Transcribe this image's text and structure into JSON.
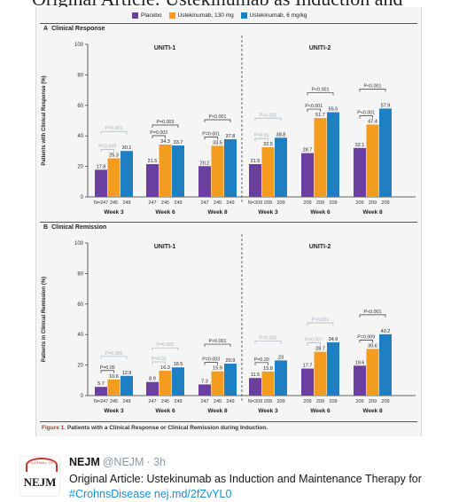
{
  "top_strip_text": "Original Article: Ustekinumab as Induction and",
  "legend": [
    {
      "label": "Placebo",
      "color": "#6b3fa0"
    },
    {
      "label": "Ustekinumab, 130 mg",
      "color": "#f39c1f"
    },
    {
      "label": "Ustekinumab, 6 mg/kg",
      "color": "#1e7fc3"
    }
  ],
  "panel_a": {
    "letter": "A",
    "title": "Clinical Response"
  },
  "panel_b": {
    "letter": "B",
    "title": "Clinical Remission"
  },
  "caption": {
    "label": "Figure 1.",
    "text": "Patients with a Clinical Response or Clinical Remission during Induction."
  },
  "chart_data": [
    {
      "type": "bar",
      "panel": "A",
      "ylabel": "Patients with Clinical Response (%)",
      "ylim": [
        0,
        100
      ],
      "yticks": [
        0,
        20,
        40,
        60,
        80,
        100
      ],
      "trial_labels": [
        "UNITI-1",
        "UNITI-2"
      ],
      "series_names": [
        "Placebo",
        "Ustekinumab, 130 mg",
        "Ustekinumab, 6 mg/kg"
      ],
      "groups": [
        {
          "trial": "UNITI-1",
          "week": "Week 3",
          "n": [
            "N=247",
            "245",
            "249"
          ],
          "values": [
            17.8,
            25.3,
            30.1
          ],
          "p": [
            {
              "text": "P=0.001",
              "faded": true,
              "pair": [
                0,
                2
              ]
            },
            {
              "text": "P=0.049",
              "faded": true,
              "pair": [
                0,
                1
              ]
            }
          ]
        },
        {
          "trial": "UNITI-1",
          "week": "Week 6",
          "n": [
            "247",
            "245",
            "249"
          ],
          "values": [
            21.5,
            34.3,
            33.7
          ],
          "p": [
            {
              "text": "P=0.003",
              "faded": false,
              "pair": [
                0,
                2
              ]
            },
            {
              "text": "P=0.002",
              "faded": false,
              "pair": [
                0,
                1
              ]
            }
          ]
        },
        {
          "trial": "UNITI-1",
          "week": "Week 8",
          "n": [
            "247",
            "245",
            "249"
          ],
          "values": [
            20.2,
            33.5,
            37.8
          ],
          "p": [
            {
              "text": "P<0.001",
              "faded": false,
              "pair": [
                0,
                2
              ]
            },
            {
              "text": "P=0.001",
              "faded": false,
              "pair": [
                0,
                1
              ]
            }
          ]
        },
        {
          "trial": "UNITI-2",
          "week": "Week 3",
          "n": [
            "N=209",
            "209",
            "209"
          ],
          "values": [
            21.5,
            32.5,
            38.8
          ],
          "p": [
            {
              "text": "P<0.001",
              "faded": true,
              "pair": [
                0,
                2
              ]
            },
            {
              "text": "P=0.01",
              "faded": true,
              "pair": [
                0,
                1
              ]
            }
          ]
        },
        {
          "trial": "UNITI-2",
          "week": "Week 6",
          "n": [
            "209",
            "209",
            "209"
          ],
          "values": [
            28.7,
            51.7,
            55.5
          ],
          "p": [
            {
              "text": "P<0.001",
              "faded": false,
              "pair": [
                0,
                2
              ]
            },
            {
              "text": "P<0.001",
              "faded": false,
              "pair": [
                0,
                1
              ]
            }
          ]
        },
        {
          "trial": "UNITI-2",
          "week": "Week 8",
          "n": [
            "209",
            "209",
            "209"
          ],
          "values": [
            32.1,
            47.4,
            57.9
          ],
          "p": [
            {
              "text": "P<0.001",
              "faded": false,
              "pair": [
                0,
                2
              ]
            },
            {
              "text": "P<0.001",
              "faded": false,
              "pair": [
                0,
                1
              ]
            }
          ]
        }
      ]
    },
    {
      "type": "bar",
      "panel": "B",
      "ylabel": "Patients in Clinical Remission (%)",
      "ylim": [
        0,
        100
      ],
      "yticks": [
        0,
        20,
        40,
        60,
        80,
        100
      ],
      "trial_labels": [
        "UNITI-1",
        "UNITI-2"
      ],
      "series_names": [
        "Placebo",
        "Ustekinumab, 130 mg",
        "Ustekinumab, 6 mg/kg"
      ],
      "groups": [
        {
          "trial": "UNITI-1",
          "week": "Week 3",
          "n": [
            "N=247",
            "245",
            "249"
          ],
          "values": [
            5.7,
            10.6,
            12.9
          ],
          "p": [
            {
              "text": "P=0.005",
              "faded": true,
              "pair": [
                0,
                2
              ]
            },
            {
              "text": "P=0.05",
              "faded": false,
              "pair": [
                0,
                1
              ]
            }
          ]
        },
        {
          "trial": "UNITI-1",
          "week": "Week 6",
          "n": [
            "247",
            "245",
            "249"
          ],
          "values": [
            8.9,
            16.3,
            18.5
          ],
          "p": [
            {
              "text": "P=0.002",
              "faded": true,
              "pair": [
                0,
                2
              ]
            },
            {
              "text": "P=0.01",
              "faded": true,
              "pair": [
                0,
                1
              ]
            }
          ]
        },
        {
          "trial": "UNITI-1",
          "week": "Week 8",
          "n": [
            "247",
            "245",
            "249"
          ],
          "values": [
            7.3,
            15.9,
            20.9
          ],
          "p": [
            {
              "text": "P<0.001",
              "faded": false,
              "pair": [
                0,
                2
              ]
            },
            {
              "text": "P=0.003",
              "faded": false,
              "pair": [
                0,
                1
              ]
            }
          ]
        },
        {
          "trial": "UNITI-2",
          "week": "Week 3",
          "n": [
            "N=209",
            "209",
            "209"
          ],
          "values": [
            11.5,
            15.8,
            23.0
          ],
          "p": [
            {
              "text": "P=0.002",
              "faded": true,
              "pair": [
                0,
                2
              ]
            },
            {
              "text": "P=0.20",
              "faded": false,
              "pair": [
                0,
                1
              ]
            }
          ]
        },
        {
          "trial": "UNITI-2",
          "week": "Week 6",
          "n": [
            "209",
            "209",
            "209"
          ],
          "values": [
            17.7,
            28.7,
            34.9
          ],
          "p": [
            {
              "text": "P<0.001",
              "faded": true,
              "pair": [
                0,
                2
              ]
            },
            {
              "text": "P=0.007",
              "faded": true,
              "pair": [
                0,
                1
              ]
            }
          ]
        },
        {
          "trial": "UNITI-2",
          "week": "Week 8",
          "n": [
            "209",
            "209",
            "209"
          ],
          "values": [
            19.6,
            30.6,
            40.2
          ],
          "p": [
            {
              "text": "P<0.001",
              "faded": false,
              "pair": [
                0,
                2
              ]
            },
            {
              "text": "P=0.009",
              "faded": false,
              "pair": [
                0,
                1
              ]
            }
          ]
        }
      ]
    }
  ],
  "tweet": {
    "name": "NEJM",
    "handle": "@NEJM",
    "time": "· 3h",
    "text_before": "Original Article: Ustekinumab as Induction and Maintenance Therapy for ",
    "hashtag": "#CrohnsDisease",
    "link": "nej.md/2fZvYL0",
    "avatar_text": "NEJM",
    "avatar_ring_text": "JOURNAL OF"
  }
}
